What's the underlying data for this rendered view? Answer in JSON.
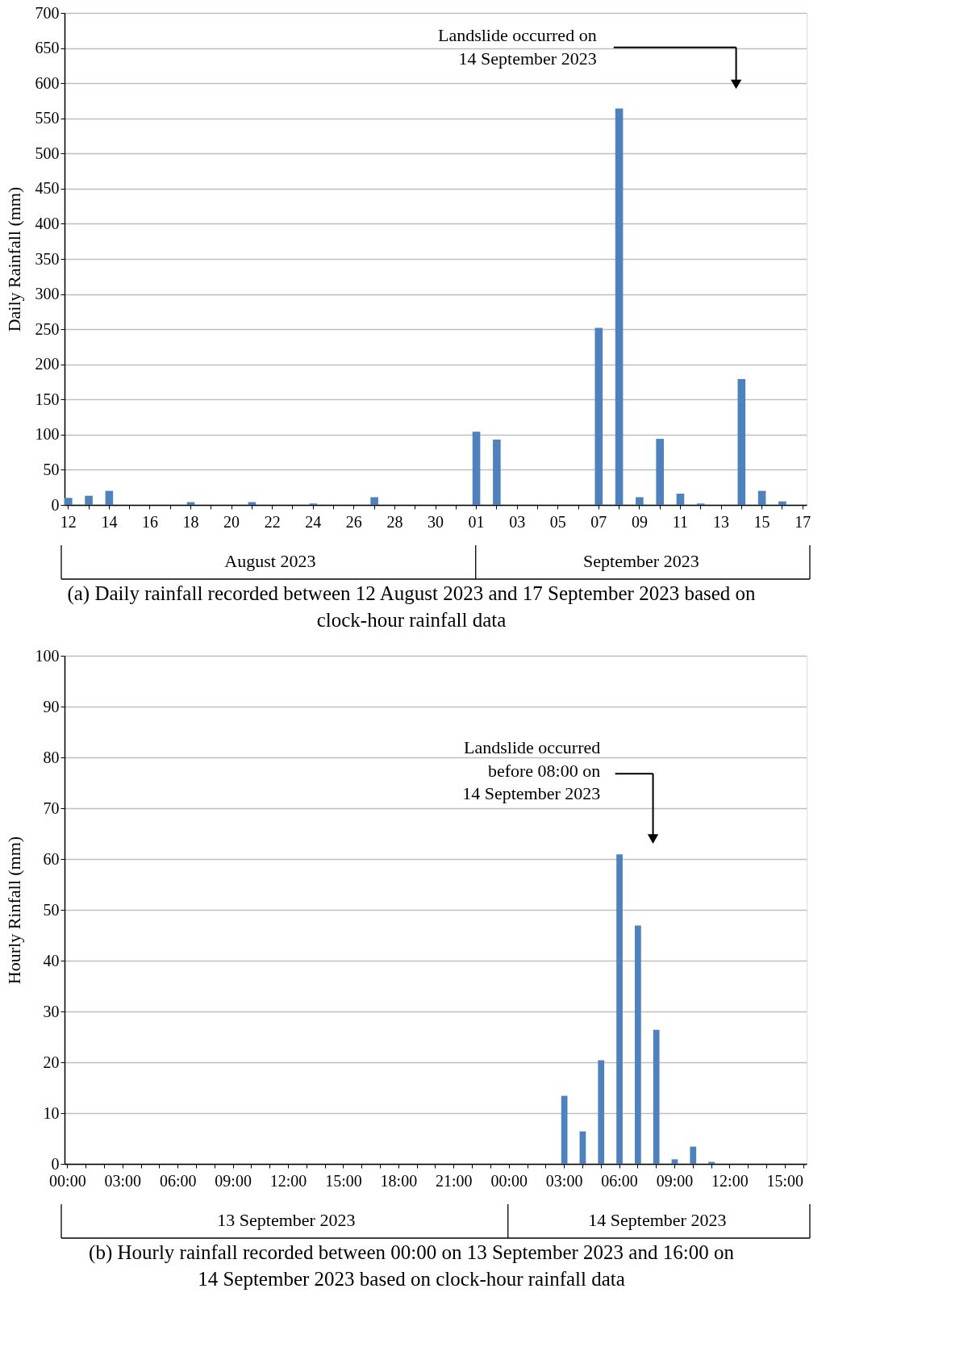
{
  "chart_data": [
    {
      "type": "bar",
      "ylabel": "Daily Rainfall (mm)",
      "color": "#4f81bd",
      "categories": [
        "12",
        null,
        "14",
        null,
        "16",
        null,
        "18",
        null,
        "20",
        null,
        "22",
        null,
        "24",
        null,
        "26",
        null,
        "28",
        null,
        "30",
        null,
        "01",
        null,
        "03",
        null,
        "05",
        null,
        "07",
        null,
        "09",
        null,
        "11",
        null,
        "13",
        null,
        "15",
        null,
        "17"
      ],
      "values": [
        10,
        13,
        20,
        0,
        0,
        0,
        4,
        0,
        0,
        4,
        0,
        0,
        2,
        0,
        0,
        11,
        0,
        0,
        0,
        0,
        104,
        93,
        0,
        0,
        0,
        0,
        252,
        564,
        11,
        94,
        16,
        2,
        0,
        179,
        20,
        5,
        0
      ],
      "ylim": [
        0,
        700
      ],
      "yticks": [
        0,
        50,
        100,
        150,
        200,
        250,
        300,
        350,
        400,
        450,
        500,
        550,
        600,
        650,
        700
      ],
      "grid": "y",
      "annotations": [
        "Landslide occurred on\n14 September 2023",
        "August 2023",
        "September 2023",
        "(a)   Daily rainfall recorded between 12 August 2023 and 17 September 2023 based on\nclock-hour rainfall data"
      ]
    },
    {
      "type": "bar",
      "ylabel": "Hourly Rinfall (mm)",
      "color": "#4f81bd",
      "categories": [
        "00:00",
        null,
        null,
        "03:00",
        null,
        null,
        "06:00",
        null,
        null,
        "09:00",
        null,
        null,
        "12:00",
        null,
        null,
        "15:00",
        null,
        null,
        "18:00",
        null,
        null,
        "21:00",
        null,
        null,
        "00:00",
        null,
        null,
        "03:00",
        null,
        null,
        "06:00",
        null,
        null,
        "09:00",
        null,
        null,
        "12:00",
        null,
        null,
        "15:00",
        null
      ],
      "values": [
        0,
        0,
        0,
        0,
        0,
        0,
        0,
        0,
        0,
        0,
        0,
        0,
        0,
        0,
        0,
        0,
        0,
        0,
        0,
        0,
        0,
        0,
        0,
        0,
        0,
        0,
        0,
        13.4,
        6.4,
        20.4,
        60.9,
        46.9,
        26.4,
        0.9,
        3.4,
        0.4,
        0,
        0,
        0,
        0,
        0
      ],
      "ylim": [
        0,
        100
      ],
      "yticks": [
        0,
        10,
        20,
        30,
        40,
        50,
        60,
        70,
        80,
        90,
        100
      ],
      "grid": "y",
      "annotations": [
        "Landslide occurred\nbefore 08:00 on\n14 September 2023",
        "13 September 2023",
        "14 September 2023",
        "(b)   Hourly rainfall recorded between 00:00 on 13 September 2023 and 16:00 on\n14 September 2023 based on clock-hour rainfall data"
      ]
    }
  ]
}
